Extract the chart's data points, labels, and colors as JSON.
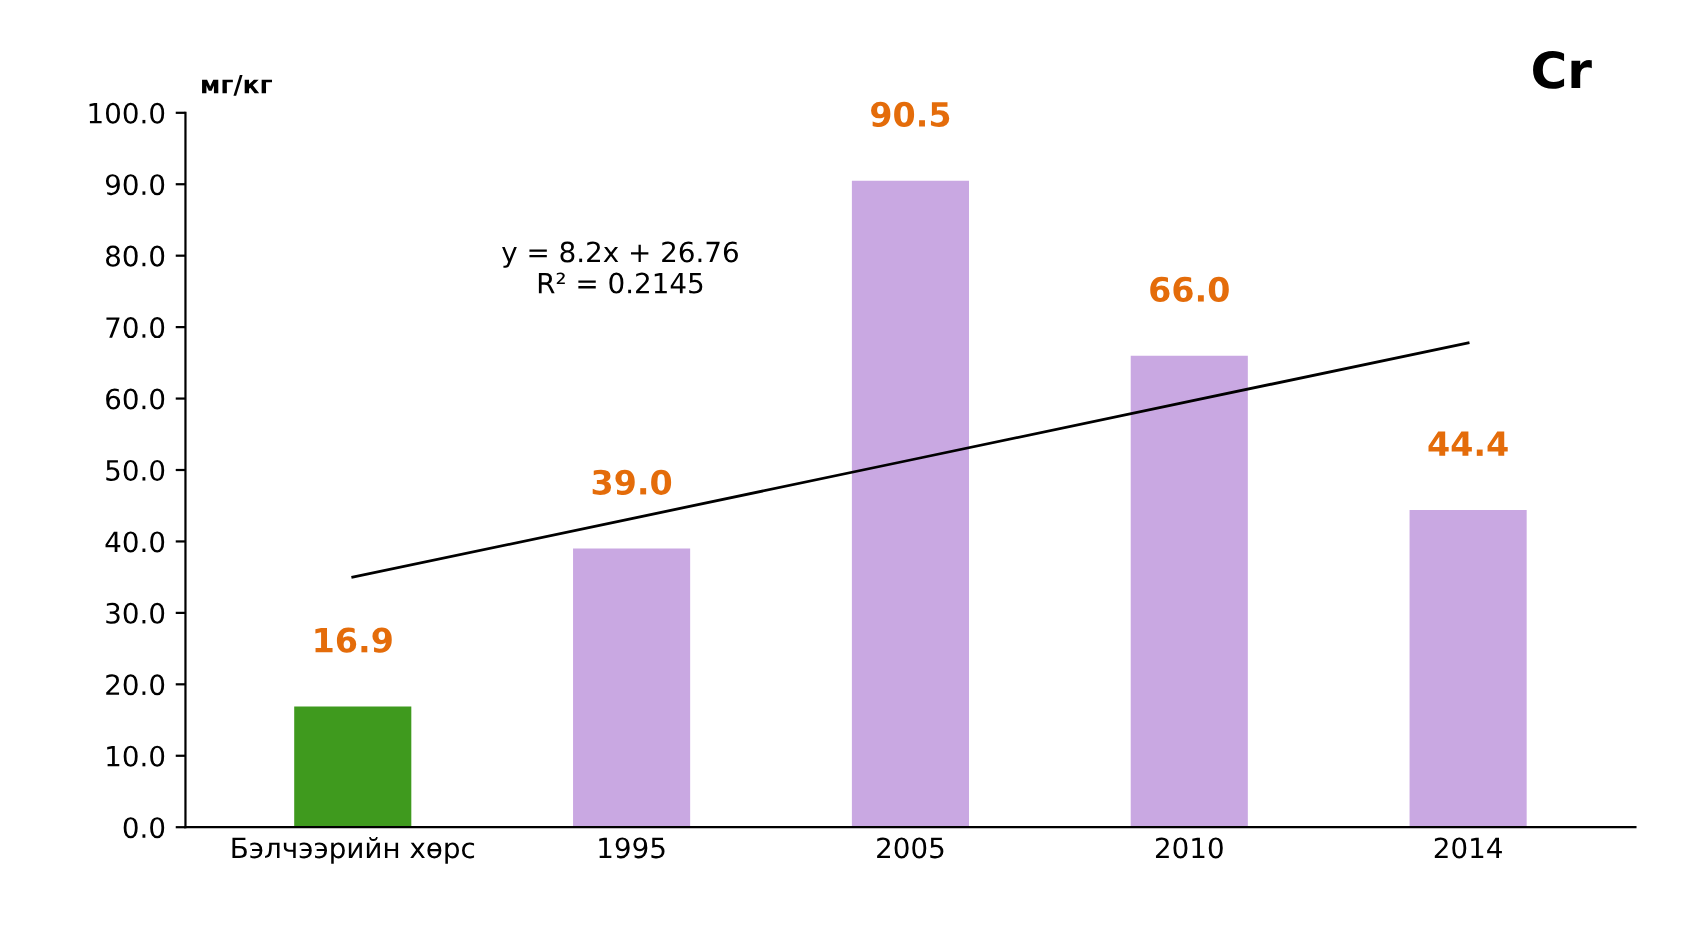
{
  "chart_data": {
    "type": "bar",
    "title": "Cr",
    "ylabel": "мг/кг",
    "categories": [
      "Бэлчээрийн хөрс",
      "1995",
      "2005",
      "2010",
      "2014"
    ],
    "series": [
      {
        "values": [
          16.9,
          39.0,
          90.5,
          66.0,
          44.4
        ],
        "colors": [
          "#3f9a1e",
          "#c9a8e2",
          "#c9a8e2",
          "#c9a8e2",
          "#c9a8e2"
        ],
        "value_labels": [
          "16.9",
          "39.0",
          "90.5",
          "66.0",
          "44.4"
        ]
      },
      {
        "type": "line",
        "values": [
          35.0,
          43.2,
          51.4,
          59.6,
          67.8
        ],
        "color": "#000000"
      }
    ],
    "annotations": [
      "y = 8.2x + 26.76\nR² = 0.2145"
    ],
    "ylim": [
      0,
      100
    ],
    "yticks": [
      {
        "value": 0,
        "label": "0.0"
      },
      {
        "value": 10,
        "label": "10.0"
      },
      {
        "value": 20,
        "label": "20.0"
      },
      {
        "value": 30,
        "label": "30.0"
      },
      {
        "value": 40,
        "label": "40.0"
      },
      {
        "value": 50,
        "label": "50.0"
      },
      {
        "value": 60,
        "label": "60.0"
      },
      {
        "value": 70,
        "label": "70.0"
      },
      {
        "value": 80,
        "label": "80.0"
      },
      {
        "value": 90,
        "label": "90.0"
      },
      {
        "value": 100,
        "label": "100.0"
      }
    ],
    "grid": false,
    "legend": false
  }
}
